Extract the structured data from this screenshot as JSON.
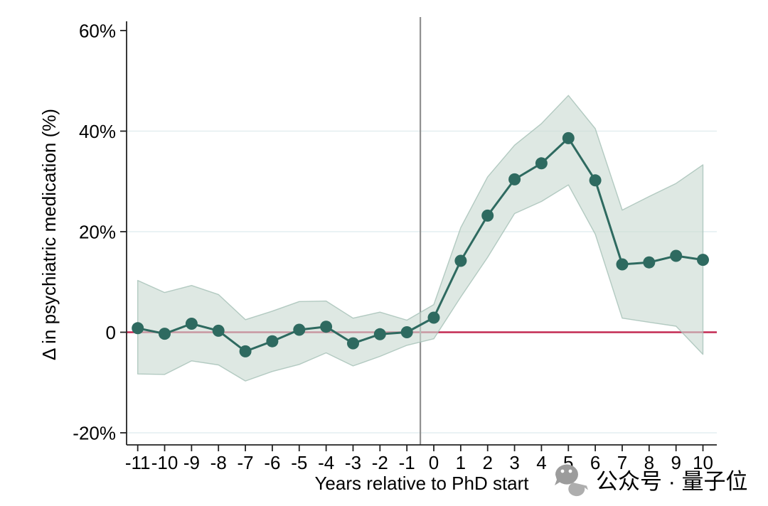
{
  "figure": {
    "background": "#ffffff",
    "watermark": {
      "icon": "wechat-icon",
      "text": "公众号 · 量子位",
      "color": "#a8a8a8"
    }
  },
  "chart_data": {
    "type": "line",
    "title": "",
    "xlabel": "Years relative to PhD start",
    "ylabel": "Δ in psychiatric medication (%)",
    "x": [
      -11,
      -10,
      -9,
      -8,
      -7,
      -6,
      -5,
      -4,
      -3,
      -2,
      -1,
      0,
      1,
      2,
      3,
      4,
      5,
      6,
      7,
      8,
      9,
      10
    ],
    "values": [
      0.8,
      -0.3,
      1.7,
      0.3,
      -3.8,
      -1.8,
      0.5,
      1.1,
      -2.2,
      -0.4,
      0.0,
      2.9,
      14.2,
      23.2,
      30.4,
      33.6,
      38.6,
      30.2,
      13.5,
      13.9,
      15.2,
      14.4
    ],
    "ci_upper": [
      10.3,
      7.9,
      9.3,
      7.5,
      2.5,
      4.2,
      6.1,
      6.2,
      2.8,
      4.0,
      2.4,
      5.5,
      20.8,
      30.9,
      37.2,
      41.5,
      47.1,
      40.5,
      24.3,
      27.0,
      29.6,
      33.3
    ],
    "ci_lower": [
      -8.3,
      -8.4,
      -5.7,
      -6.5,
      -9.7,
      -7.8,
      -6.4,
      -4.1,
      -6.7,
      -4.8,
      -2.6,
      -1.3,
      7.0,
      14.9,
      23.6,
      26.0,
      29.3,
      19.5,
      2.8,
      2.0,
      1.2,
      -4.4
    ],
    "series_names": [
      "Point estimate",
      "Confidence band"
    ],
    "y_ticks": [
      {
        "value": 60,
        "label": "60%"
      },
      {
        "value": 40,
        "label": "40%"
      },
      {
        "value": 20,
        "label": "20%"
      },
      {
        "value": 0,
        "label": "0"
      },
      {
        "value": -20,
        "label": "-20%"
      }
    ],
    "x_tick_labels": [
      "-11",
      "-10",
      "-9",
      "-8",
      "-7",
      "-6",
      "-5",
      "-4",
      "-3",
      "-2",
      "-1",
      "0",
      "1",
      "2",
      "3",
      "4",
      "5",
      "6",
      "7",
      "8",
      "9",
      "10"
    ],
    "grid_values": [
      40,
      20,
      -20
    ],
    "reference_line_y": 0,
    "vline_x": -0.5,
    "ylim": [
      -22.4,
      61.8
    ],
    "xlim": [
      -11.9,
      10.6
    ],
    "grid": "on",
    "legend": "none",
    "colors": {
      "line": "#2e6a60",
      "marker": "#2e6a60",
      "band_fill": "#c9dad2",
      "band_edge": "#9fbcb1",
      "zero_line": "#c42a52",
      "vline": "#909090",
      "grid": "#e3eef0",
      "axis": "#222222",
      "text": "#000000",
      "watermark": "#a8a8a8"
    }
  }
}
